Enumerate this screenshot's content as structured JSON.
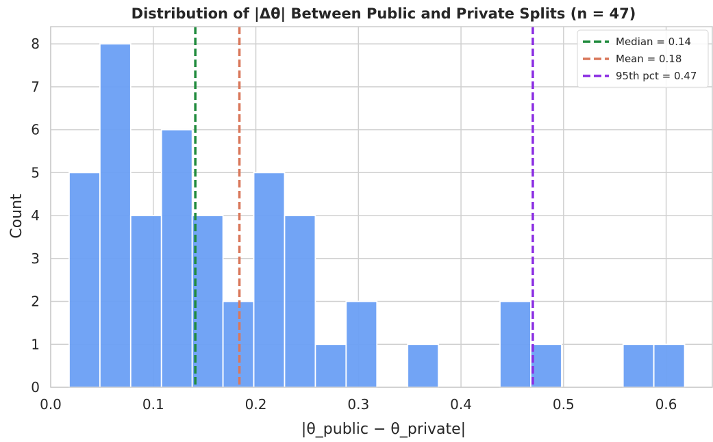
{
  "chart_data": {
    "type": "bar",
    "title": "Distribution of |Δθ| Between Public and Private Splits  (n = 47)",
    "xlabel": "|θ_public − θ_private|",
    "ylabel": "Count",
    "xlim": [
      0.0,
      0.645
    ],
    "ylim": [
      0,
      8.4
    ],
    "xticks": [
      "0.0",
      "0.1",
      "0.2",
      "0.3",
      "0.4",
      "0.5",
      "0.6"
    ],
    "yticks": [
      "0",
      "1",
      "2",
      "3",
      "4",
      "5",
      "6",
      "7",
      "8"
    ],
    "grid": true,
    "bin_edges": [
      0.018,
      0.048,
      0.078,
      0.108,
      0.138,
      0.168,
      0.198,
      0.228,
      0.258,
      0.288,
      0.318,
      0.348,
      0.378,
      0.408,
      0.438,
      0.468,
      0.498,
      0.528,
      0.558,
      0.588,
      0.618
    ],
    "values": [
      5,
      8,
      4,
      6,
      4,
      2,
      5,
      4,
      1,
      2,
      0,
      1,
      0,
      0,
      2,
      1,
      0,
      0,
      1,
      1
    ],
    "bar_color": "#6ca0f5",
    "reference_lines": [
      {
        "label": "Median = 0.14",
        "x": 0.141,
        "color": "#1f8a3c"
      },
      {
        "label": "Mean = 0.18",
        "x": 0.184,
        "color": "#d9775a"
      },
      {
        "label": "95th pct = 0.47",
        "x": 0.47,
        "color": "#8a2be2"
      }
    ],
    "legend_position": "top-right"
  }
}
